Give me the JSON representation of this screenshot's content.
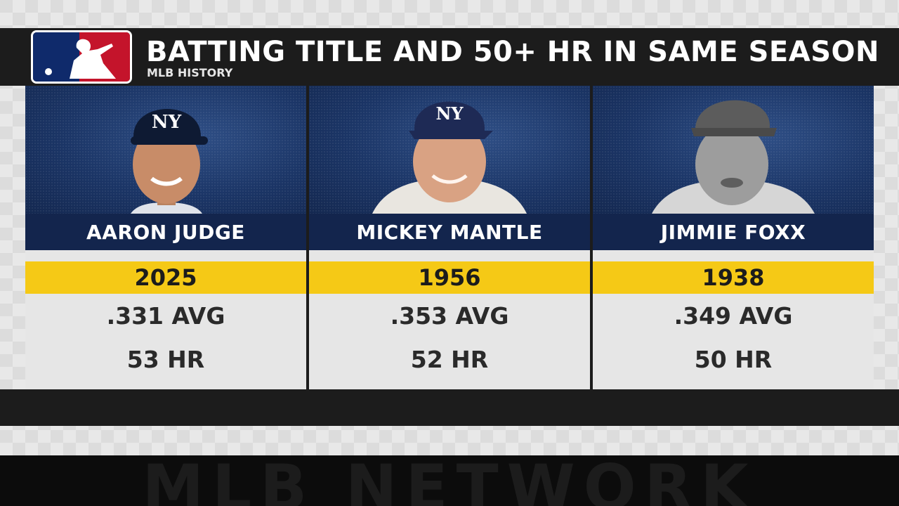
{
  "header": {
    "title": "BATTING TITLE AND 50+ HR IN SAME SEASON",
    "subtitle": "MLB HISTORY",
    "logo_icon": "mlb-logo-icon"
  },
  "colors": {
    "header_bg": "#1c1c1c",
    "name_bar": "#13254d",
    "year_bar": "#f5c916",
    "stat_bg": "#e6e6e6"
  },
  "players": [
    {
      "name": "AARON JUDGE",
      "year": "2025",
      "avg": ".331 AVG",
      "hr": "53 HR",
      "photo_icon": "player-photo"
    },
    {
      "name": "MICKEY MANTLE",
      "year": "1956",
      "avg": ".353 AVG",
      "hr": "52 HR",
      "photo_icon": "player-photo"
    },
    {
      "name": "JIMMIE FOXX",
      "year": "1938",
      "avg": ".349 AVG",
      "hr": "50 HR",
      "photo_icon": "player-photo"
    }
  ],
  "footer": {
    "watermark": "MLB NETWORK"
  }
}
